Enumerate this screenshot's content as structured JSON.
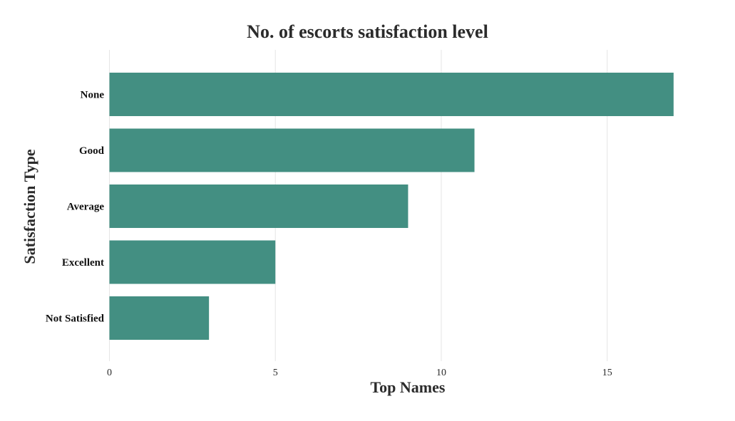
{
  "chart_data": {
    "type": "bar",
    "orientation": "horizontal",
    "title": "No. of escorts satisfaction level",
    "xlabel": "Top Names",
    "ylabel": "Satisfaction Type",
    "categories": [
      "None",
      "Good",
      "Average",
      "Excellent",
      "Not Satisfied"
    ],
    "values": [
      17,
      11,
      9,
      5,
      3
    ],
    "xlim": [
      0,
      18
    ],
    "x_ticks": [
      0,
      5,
      10,
      15
    ],
    "x_tick_labels": [
      "0",
      "5",
      "10",
      "15"
    ],
    "grid": "vertical",
    "legend": "none",
    "bar_color": "#438f82",
    "gridline_color": "#e6e6e6"
  }
}
